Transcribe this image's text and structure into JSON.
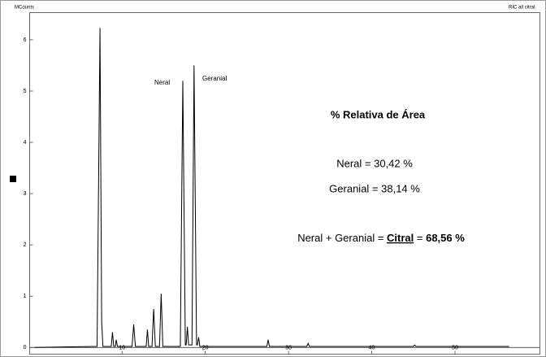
{
  "chart_data": {
    "type": "line",
    "y_axis_label": "MCounts",
    "trace_label": "RIC all citral.",
    "xlim": [
      -1.1,
      60.2
    ],
    "ylim": [
      -0.13,
      6.53
    ],
    "xticks": [
      10,
      20,
      30,
      40,
      50
    ],
    "yticks": [
      0,
      1,
      2,
      3,
      4,
      5,
      6
    ],
    "series": [
      {
        "color": "#000000",
        "x": [
          -0.5,
          3.0,
          7.0,
          7.35,
          7.55,
          7.7,
          8.7,
          8.85,
          9.0,
          9.2,
          9.3,
          9.45,
          11.2,
          11.4,
          11.6,
          12.9,
          13.05,
          13.2,
          13.6,
          13.8,
          14.0,
          14.5,
          14.7,
          14.9,
          17.0,
          17.3,
          17.6,
          17.7,
          17.85,
          18.0,
          18.4,
          18.65,
          18.95,
          19.05,
          19.2,
          19.35,
          27.4,
          27.55,
          27.7,
          32.2,
          32.35,
          32.5,
          45.0,
          45.15,
          45.3,
          56.5
        ],
        "values": [
          0,
          0.01,
          0.02,
          6.23,
          0.5,
          0.02,
          0.02,
          0.3,
          0.02,
          0.02,
          0.15,
          0.02,
          0.02,
          0.45,
          0.02,
          0.02,
          0.35,
          0.02,
          0.02,
          0.75,
          0.02,
          0.02,
          1.05,
          0.02,
          0.02,
          5.2,
          0.05,
          0.05,
          0.4,
          0.05,
          0.05,
          5.5,
          0.05,
          0.05,
          0.2,
          0.02,
          0.02,
          0.15,
          0.02,
          0.02,
          0.08,
          0.02,
          0.02,
          0.05,
          0.02,
          0.02
        ]
      }
    ],
    "peak_labels": [
      "Neral",
      "Geranial"
    ],
    "box_title": "% Relativa de Área",
    "results": [
      "Neral = 30,42 %",
      "Geranial = 38,14 %"
    ],
    "sum_line": [
      "Neral + Geranial = ",
      "Citral",
      " = ",
      "68,56 %"
    ]
  }
}
